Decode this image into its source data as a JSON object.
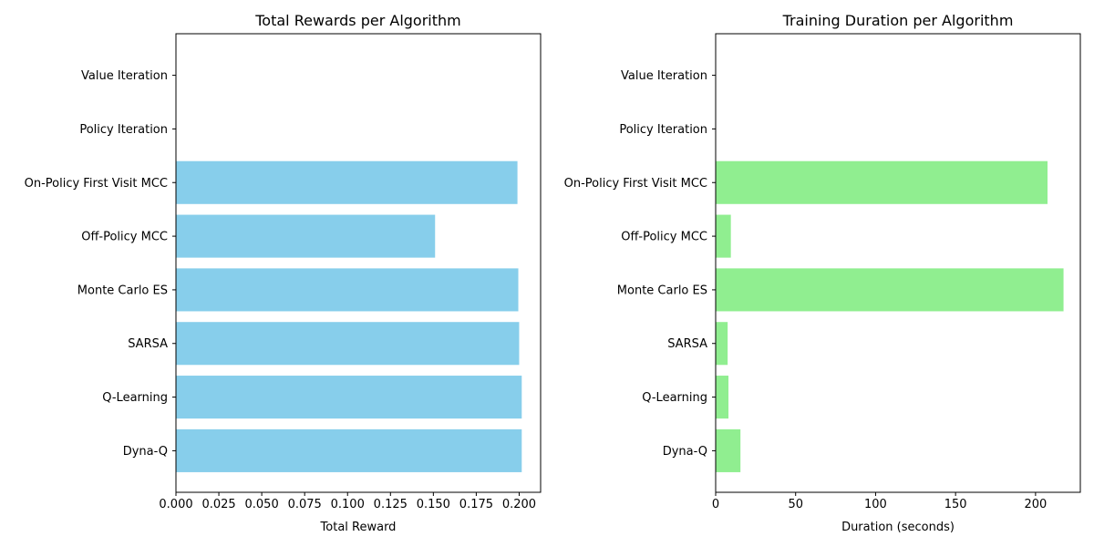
{
  "chart_data": [
    {
      "type": "bar",
      "orientation": "horizontal",
      "title": "Total Rewards per Algorithm",
      "xlabel": "Total Reward",
      "ylabel": "",
      "color": "#87CEEB",
      "categories": [
        "Value Iteration",
        "Policy Iteration",
        "On-Policy First Visit MCC",
        "Off-Policy MCC",
        "Monte Carlo ES",
        "SARSA",
        "Q-Learning",
        "Dyna-Q"
      ],
      "values": [
        0,
        0,
        0.199,
        0.151,
        0.1995,
        0.2,
        0.2015,
        0.2015
      ],
      "xlim": [
        0,
        0.2125
      ],
      "xticks": [
        "0.000",
        "0.025",
        "0.050",
        "0.075",
        "0.100",
        "0.125",
        "0.150",
        "0.175",
        "0.200"
      ],
      "grid": false
    },
    {
      "type": "bar",
      "orientation": "horizontal",
      "title": "Training Duration per Algorithm",
      "xlabel": "Duration (seconds)",
      "ylabel": "",
      "color": "#90EE90",
      "categories": [
        "Value Iteration",
        "Policy Iteration",
        "On-Policy First Visit MCC",
        "Off-Policy MCC",
        "Monte Carlo ES",
        "SARSA",
        "Q-Learning",
        "Dyna-Q"
      ],
      "values": [
        0,
        0,
        207.5,
        9.5,
        217.5,
        7.5,
        8,
        15.5
      ],
      "xlim": [
        0,
        228
      ],
      "xticks": [
        "0",
        "50",
        "100",
        "150",
        "200"
      ],
      "grid": false
    }
  ]
}
